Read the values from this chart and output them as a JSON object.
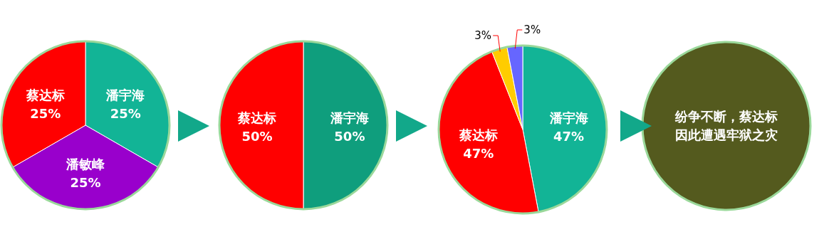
{
  "chart_data": [
    {
      "type": "pie",
      "categories": [
        "潘宇海",
        "潘敏峰",
        "蔡达标"
      ],
      "values": [
        25,
        25,
        25
      ],
      "value_labels": [
        "25%",
        "25%",
        "25%"
      ],
      "colors": [
        "#12b496",
        "#9900cc",
        "#ff0000"
      ]
    },
    {
      "type": "pie",
      "categories": [
        "潘宇海",
        "蔡达标"
      ],
      "values": [
        50,
        50
      ],
      "value_labels": [
        "50%",
        "50%"
      ],
      "colors": [
        "#0f9e7d",
        "#ff0000"
      ]
    },
    {
      "type": "pie",
      "categories": [
        "潘宇海",
        "蔡达标",
        null,
        null
      ],
      "values": [
        47,
        47,
        3,
        3
      ],
      "value_labels": [
        "47%",
        "47%",
        "3%",
        "3%"
      ],
      "colors": [
        "#12b496",
        "#ff0000",
        "#ffcc00",
        "#6666ff"
      ]
    },
    {
      "type": "other",
      "annotations": [
        "纷争不断，蔡达标",
        "因此遭遇牢狱之灾"
      ]
    }
  ]
}
